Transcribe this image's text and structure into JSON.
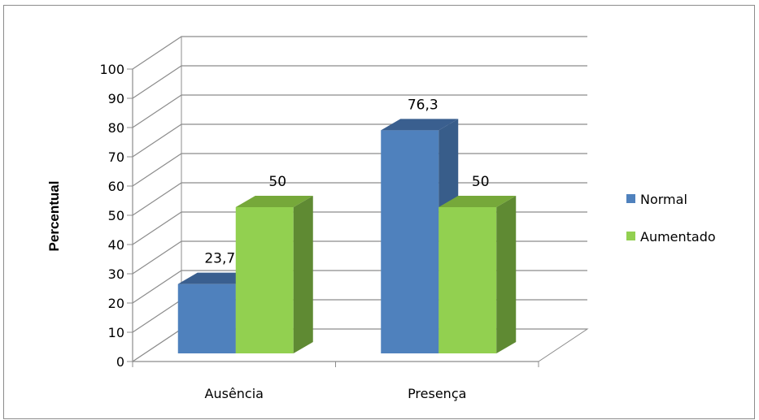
{
  "chart_data": {
    "type": "bar",
    "categories": [
      "Ausência",
      "Presença"
    ],
    "series": [
      {
        "name": "Normal",
        "values": [
          23.7,
          76.3
        ],
        "labels": [
          "23,7",
          "76,3"
        ],
        "color": "#4f81bd",
        "side_color": "#385d8a",
        "top_color": "#3a5f8f"
      },
      {
        "name": "Aumentado",
        "values": [
          50,
          50
        ],
        "labels": [
          "50",
          "50"
        ],
        "color": "#92d050",
        "side_color": "#5f8a33",
        "top_color": "#76a83a"
      }
    ],
    "title": "",
    "xlabel": "",
    "ylabel": "Percentual",
    "ylim": [
      0,
      100
    ],
    "yticks": [
      "0",
      "10",
      "20",
      "30",
      "40",
      "50",
      "60",
      "70",
      "80",
      "90",
      "100"
    ],
    "grid": true,
    "legend_position": "right",
    "style": "3d-clustered-column"
  }
}
